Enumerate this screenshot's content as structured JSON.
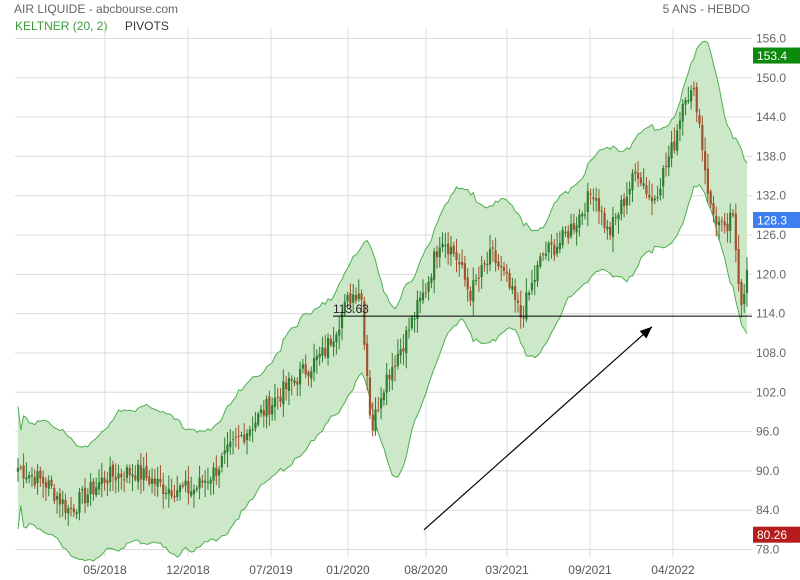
{
  "header": {
    "title": "AIR LIQUIDE - abcbourse.com",
    "period": "5 ANS - HEBDO"
  },
  "indicators": {
    "keltner_label": "KELTNER (20, 2)",
    "pivots_label": "PIVOTS"
  },
  "colors": {
    "up": "#2e7d32",
    "down": "#a0522d",
    "band_fill": "#cde8c8",
    "band_line": "#4caf50",
    "grid": "#dcdcdc",
    "tag_green": "#0b8a0b",
    "tag_blue": "#3d7ff0",
    "tag_red": "#b71c1c"
  },
  "chart_data": {
    "type": "candlestick",
    "xlabel": "",
    "ylabel": "",
    "ylim": [
      78,
      156
    ],
    "x_ticks": [
      "05/2018",
      "12/2018",
      "07/2019",
      "01/2020",
      "08/2020",
      "03/2021",
      "09/2021",
      "04/2022"
    ],
    "y_ticks": [
      "156.0",
      "150.0",
      "144.0",
      "138.0",
      "132.0",
      "126.0",
      "120.0",
      "114.0",
      "108.0",
      "102.0",
      "96.0",
      "90.0",
      "84.0",
      "78.0"
    ],
    "y_tick_values": [
      156,
      150,
      144,
      138,
      132,
      126,
      120,
      114,
      108,
      102,
      96,
      90,
      84,
      78
    ],
    "price_anchors": [
      [
        0,
        90.5
      ],
      [
        0.04,
        88
      ],
      [
        0.07,
        84
      ],
      [
        0.09,
        86
      ],
      [
        0.12,
        89
      ],
      [
        0.16,
        90
      ],
      [
        0.2,
        87.5
      ],
      [
        0.24,
        87
      ],
      [
        0.27,
        90
      ],
      [
        0.3,
        94.5
      ],
      [
        0.34,
        99.5
      ],
      [
        0.38,
        104
      ],
      [
        0.42,
        108
      ],
      [
        0.455,
        116.5
      ],
      [
        0.47,
        118
      ],
      [
        0.485,
        96
      ],
      [
        0.5,
        103
      ],
      [
        0.53,
        110
      ],
      [
        0.56,
        118
      ],
      [
        0.58,
        126
      ],
      [
        0.6,
        123
      ],
      [
        0.62,
        117
      ],
      [
        0.65,
        123
      ],
      [
        0.67,
        119
      ],
      [
        0.69,
        113.5
      ],
      [
        0.72,
        123
      ],
      [
        0.745,
        125
      ],
      [
        0.77,
        129
      ],
      [
        0.79,
        133
      ],
      [
        0.81,
        126
      ],
      [
        0.83,
        131
      ],
      [
        0.85,
        136
      ],
      [
        0.87,
        131
      ],
      [
        0.9,
        140
      ],
      [
        0.915,
        148
      ],
      [
        0.93,
        147
      ],
      [
        0.95,
        130
      ],
      [
        0.97,
        126
      ],
      [
        0.98,
        129
      ],
      [
        0.992,
        116
      ],
      [
        1.0,
        120
      ]
    ],
    "band_note": "Keltner channel (20, 2)",
    "pivot_level": 113.63,
    "pivot_label": "113.63",
    "trend_arrow": {
      "from": [
        "08/2020",
        81
      ],
      "to": [
        "04/2022",
        112
      ]
    },
    "last_tags": [
      {
        "label": "153.4",
        "value": 153.4,
        "color": "#0b8a0b"
      },
      {
        "label": "128.3",
        "value": 128.3,
        "color": "#3d7ff0"
      },
      {
        "label": "80.26",
        "value": 80.26,
        "color": "#b71c1c"
      }
    ]
  }
}
